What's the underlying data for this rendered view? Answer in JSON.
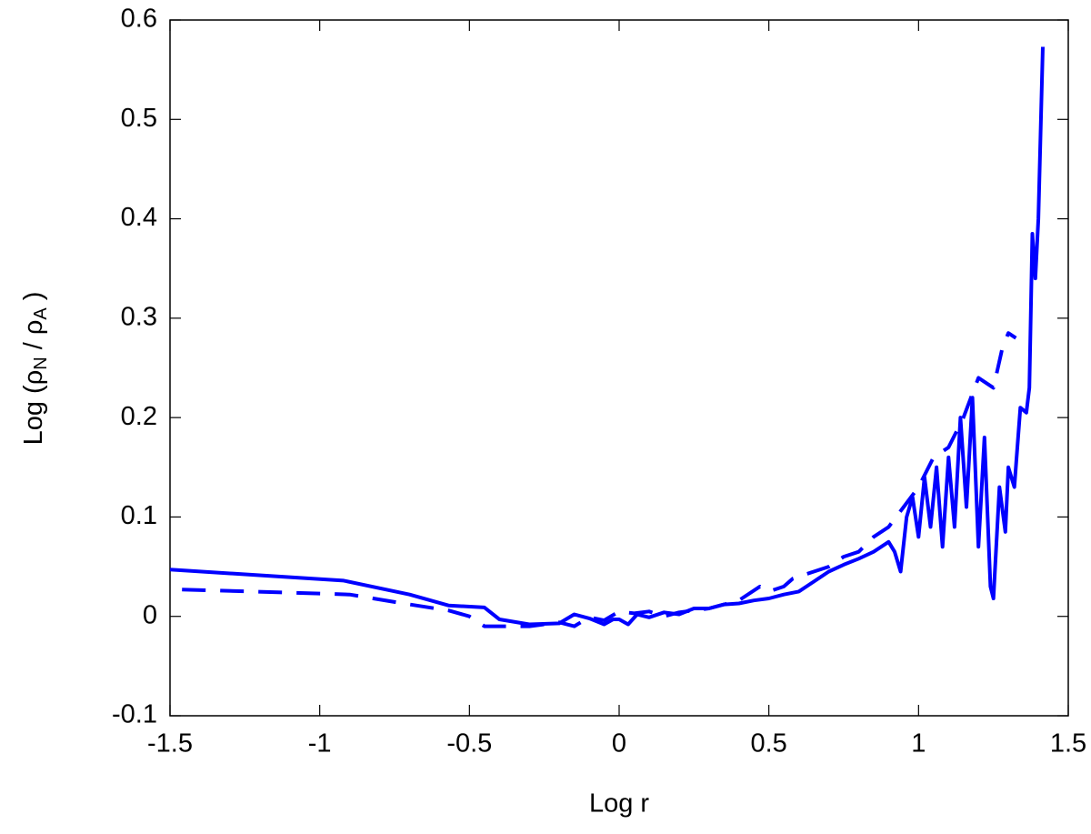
{
  "chart_data": {
    "type": "line",
    "xlabel": "Log r",
    "ylabel": [
      "Log (ρ",
      "N",
      " / ρ",
      "A",
      " )"
    ],
    "xlim": [
      -1.5,
      1.5
    ],
    "xticks": [
      -1.5,
      -1,
      -0.5,
      0,
      0.5,
      1,
      1.5
    ],
    "ylim": [
      -0.1,
      0.6
    ],
    "yticks": [
      -0.1,
      0,
      0.1,
      0.2,
      0.3,
      0.4,
      0.5,
      0.6
    ],
    "grid": false,
    "series": [
      {
        "color": "#0000ff",
        "dash": "solid",
        "x": [
          -1.5,
          -0.92,
          -0.7,
          -0.57,
          -0.45,
          -0.4,
          -0.3,
          -0.2,
          -0.15,
          -0.1,
          -0.05,
          -0.02,
          0.0,
          0.03,
          0.06,
          0.1,
          0.15,
          0.2,
          0.25,
          0.3,
          0.35,
          0.4,
          0.45,
          0.5,
          0.55,
          0.6,
          0.65,
          0.7,
          0.75,
          0.8,
          0.85,
          0.9,
          0.92,
          0.94,
          0.96,
          0.98,
          1.0,
          1.02,
          1.04,
          1.06,
          1.08,
          1.1,
          1.12,
          1.14,
          1.16,
          1.18,
          1.2,
          1.22,
          1.24,
          1.25,
          1.27,
          1.29,
          1.3,
          1.32,
          1.34,
          1.36,
          1.37,
          1.38,
          1.39,
          1.4,
          1.415
        ],
        "values": [
          0.047,
          0.036,
          0.022,
          0.011,
          0.009,
          -0.003,
          -0.008,
          -0.007,
          0.002,
          -0.002,
          -0.008,
          -0.003,
          -0.003,
          -0.008,
          0.002,
          -0.001,
          0.004,
          0.002,
          0.008,
          0.008,
          0.012,
          0.013,
          0.016,
          0.018,
          0.022,
          0.025,
          0.035,
          0.045,
          0.052,
          0.058,
          0.065,
          0.075,
          0.065,
          0.045,
          0.1,
          0.12,
          0.08,
          0.14,
          0.09,
          0.15,
          0.07,
          0.16,
          0.09,
          0.2,
          0.11,
          0.22,
          0.07,
          0.18,
          0.03,
          0.018,
          0.13,
          0.085,
          0.15,
          0.13,
          0.21,
          0.205,
          0.23,
          0.385,
          0.34,
          0.4,
          0.573
        ]
      },
      {
        "color": "#0000ff",
        "dash": "dashed",
        "x": [
          -1.46,
          -1.0,
          -0.9,
          -0.7,
          -0.57,
          -0.5,
          -0.45,
          -0.3,
          -0.2,
          -0.15,
          -0.1,
          -0.05,
          0.0,
          0.05,
          0.1,
          0.15,
          0.2,
          0.3,
          0.4,
          0.47,
          0.5,
          0.55,
          0.58,
          0.65,
          0.7,
          0.75,
          0.8,
          0.85,
          0.9,
          0.95,
          1.0,
          1.05,
          1.1,
          1.15,
          1.2,
          1.25,
          1.28,
          1.3,
          1.325
        ],
        "values": [
          0.027,
          0.023,
          0.022,
          0.012,
          0.006,
          0.0,
          -0.01,
          -0.01,
          -0.006,
          -0.01,
          -0.001,
          -0.004,
          0.005,
          0.003,
          0.005,
          0.0,
          0.004,
          0.008,
          0.016,
          0.03,
          0.025,
          0.03,
          0.038,
          0.045,
          0.05,
          0.06,
          0.065,
          0.08,
          0.09,
          0.11,
          0.13,
          0.16,
          0.17,
          0.2,
          0.24,
          0.23,
          0.27,
          0.285,
          0.28
        ]
      }
    ]
  }
}
